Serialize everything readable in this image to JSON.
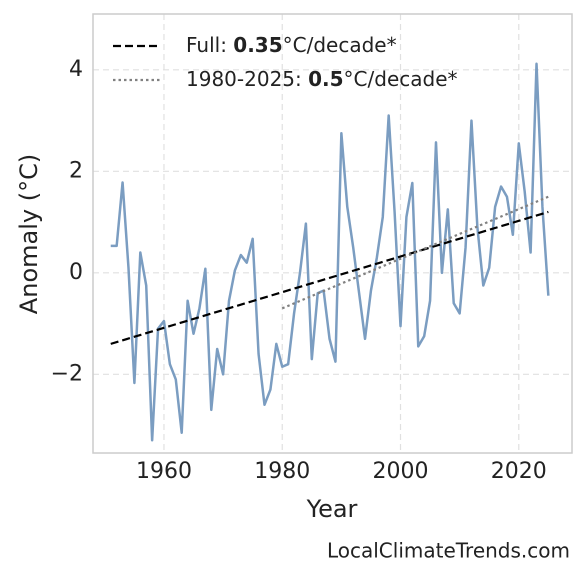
{
  "chart_data": {
    "type": "line",
    "xlabel": "Year",
    "ylabel": "Anomaly (°C)",
    "source": "LocalClimateTrends.com",
    "xlim": [
      1948,
      2029
    ],
    "ylim": [
      -3.55,
      5.1
    ],
    "xticks": [
      1960,
      1980,
      2000,
      2020
    ],
    "yticks": [
      {
        "value": -2,
        "label": "−2"
      },
      0,
      2,
      4
    ],
    "grid": true,
    "legend": "upper left",
    "series": [
      {
        "color": "#7b9dc1",
        "style": "solid",
        "x": [
          1951,
          1952,
          1953,
          1954,
          1955,
          1956,
          1957,
          1958,
          1959,
          1960,
          1961,
          1962,
          1963,
          1964,
          1965,
          1966,
          1967,
          1968,
          1969,
          1970,
          1971,
          1972,
          1973,
          1974,
          1975,
          1976,
          1977,
          1978,
          1979,
          1980,
          1981,
          1982,
          1983,
          1984,
          1985,
          1986,
          1987,
          1988,
          1989,
          1990,
          1991,
          1992,
          1993,
          1994,
          1995,
          1996,
          1997,
          1998,
          1999,
          2000,
          2001,
          2002,
          2003,
          2004,
          2005,
          2006,
          2007,
          2008,
          2009,
          2010,
          2011,
          2012,
          2013,
          2014,
          2015,
          2016,
          2017,
          2018,
          2019,
          2020,
          2021,
          2022,
          2023,
          2024,
          2025
        ],
        "values": [
          0.53,
          0.53,
          1.78,
          0.1,
          -2.17,
          0.4,
          -0.25,
          -3.3,
          -1.1,
          -0.95,
          -1.8,
          -2.1,
          -3.15,
          -0.55,
          -1.2,
          -0.7,
          0.08,
          -2.7,
          -1.5,
          -2.0,
          -0.55,
          0.05,
          0.35,
          0.2,
          0.67,
          -1.6,
          -2.6,
          -2.3,
          -1.4,
          -1.85,
          -1.8,
          -0.8,
          0.0,
          0.97,
          -1.7,
          -0.4,
          -0.35,
          -1.3,
          -1.75,
          2.75,
          1.3,
          0.5,
          -0.4,
          -1.3,
          -0.35,
          0.3,
          1.1,
          3.1,
          1.2,
          -1.05,
          1.1,
          1.77,
          -1.45,
          -1.25,
          -0.55,
          2.57,
          0.0,
          1.25,
          -0.6,
          -0.8,
          0.5,
          3.0,
          0.9,
          -0.25,
          0.1,
          1.3,
          1.7,
          1.5,
          0.75,
          2.55,
          1.6,
          0.4,
          4.12,
          1.3,
          -0.45
        ]
      },
      {
        "name_parts": [
          "Full: ",
          "0.35",
          "°C/decade*"
        ],
        "color": "#000000",
        "style": "dashed",
        "x": [
          1951,
          2025
        ],
        "values": [
          -1.4,
          1.2
        ]
      },
      {
        "name_parts": [
          "1980-2025: ",
          "0.5",
          "°C/decade*"
        ],
        "color": "#808080",
        "style": "dotted",
        "x": [
          1980,
          2025
        ],
        "values": [
          -0.7,
          1.5
        ]
      }
    ]
  }
}
